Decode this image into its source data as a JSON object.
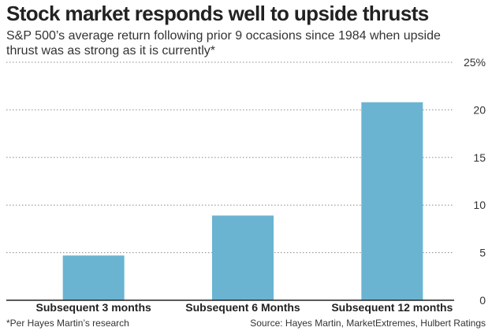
{
  "header": {
    "title": "Stock market responds well to upside thrusts",
    "subtitle": "S&P 500’s average return following prior 9 occasions since 1984 when upside thrust was as strong as it is currently*"
  },
  "footer": {
    "footnote": "*Per Hayes Martin’s research",
    "source": "Source: Hayes Martin, MarketExtremes, Hulbert Ratings"
  },
  "colors": {
    "bar": "#6ab4d2",
    "grid": "#8a8a8a",
    "axis": "#222222",
    "text": "#222222"
  },
  "chart_data": {
    "type": "bar",
    "title": "Stock market responds well to upside thrusts",
    "categories": [
      "Subsequent 3 months",
      "Subsequent 6 Months",
      "Subsequent 12 months"
    ],
    "values": [
      4.7,
      8.9,
      20.8
    ],
    "ylim": [
      0,
      25
    ],
    "yticks": [
      0,
      5,
      10,
      15,
      20,
      25
    ],
    "ytick_labels": [
      "0",
      "5",
      "10",
      "15",
      "20",
      "25%"
    ],
    "xlabel": "",
    "ylabel": "",
    "grid": true,
    "y_axis_position": "right"
  }
}
